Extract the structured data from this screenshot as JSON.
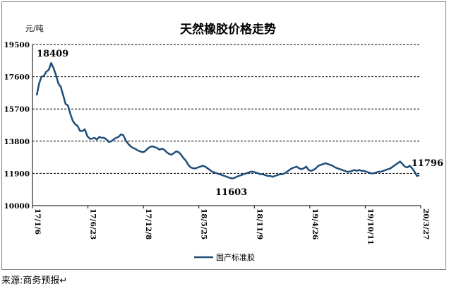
{
  "source_note": "来源:商务预报↵",
  "chart_data": {
    "type": "line",
    "title": "天然橡胶价格走势",
    "ylabel": "元/吨",
    "ylim": [
      10000,
      19500
    ],
    "yticks": [
      10000,
      11900,
      13800,
      15700,
      17600,
      19500
    ],
    "grid": true,
    "legend_placement": "bottom",
    "x_tick_labels": [
      "17/1/6",
      "17/6/23",
      "17/12/8",
      "18/5/25",
      "18/11/9",
      "19/4/26",
      "19/10/11",
      "20/3/27"
    ],
    "series": [
      {
        "name": "国产标准胶",
        "color": "#1f4e79",
        "values": [
          16500,
          17200,
          17600,
          17650,
          17900,
          18000,
          18409,
          18100,
          17700,
          17200,
          17000,
          16500,
          16000,
          15900,
          15400,
          15000,
          14800,
          14700,
          14400,
          14400,
          14500,
          14100,
          13950,
          13950,
          14000,
          13900,
          14050,
          14000,
          14000,
          13900,
          13750,
          13800,
          13900,
          14000,
          14050,
          14200,
          14150,
          13850,
          13650,
          13500,
          13400,
          13350,
          13250,
          13200,
          13150,
          13200,
          13350,
          13450,
          13500,
          13450,
          13400,
          13300,
          13350,
          13300,
          13150,
          13050,
          13000,
          13100,
          13200,
          13150,
          13000,
          12800,
          12650,
          12400,
          12250,
          12200,
          12200,
          12250,
          12300,
          12350,
          12300,
          12200,
          12100,
          12000,
          11950,
          11900,
          11850,
          11800,
          11750,
          11700,
          11650,
          11603,
          11620,
          11700,
          11750,
          11800,
          11850,
          11900,
          11950,
          12000,
          12000,
          11950,
          11900,
          11850,
          11850,
          11800,
          11750,
          11750,
          11700,
          11750,
          11800,
          11850,
          11850,
          11900,
          12000,
          12100,
          12200,
          12250,
          12300,
          12200,
          12150,
          12200,
          12300,
          12100,
          12050,
          12100,
          12200,
          12350,
          12400,
          12450,
          12500,
          12450,
          12400,
          12350,
          12250,
          12200,
          12150,
          12100,
          12050,
          12000,
          12000,
          12050,
          12100,
          12050,
          12100,
          12050,
          12050,
          12000,
          11950,
          11900,
          11900,
          11950,
          12000,
          12000,
          12050,
          12100,
          12150,
          12200,
          12300,
          12400,
          12500,
          12600,
          12450,
          12300,
          12250,
          12350,
          12200,
          12000,
          11750,
          11796
        ]
      }
    ],
    "annotations": [
      {
        "text": "18409",
        "index": 6,
        "value": 18409
      },
      {
        "text": "11603",
        "index": 81,
        "value": 11603
      },
      {
        "text": "11796",
        "index": 164,
        "value": 11796
      }
    ]
  }
}
